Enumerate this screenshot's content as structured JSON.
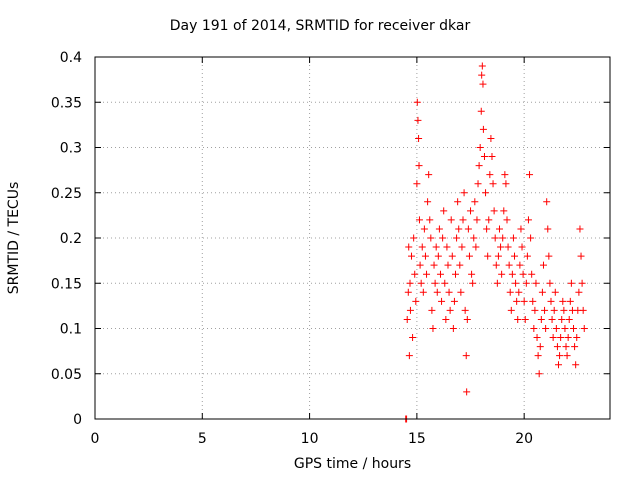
{
  "chart_data": {
    "type": "scatter",
    "title": "Day 191 of 2014, SRMTID for receiver dkar",
    "xlabel": "GPS time / hours",
    "ylabel": "SRMTID / TECUs",
    "xlim": [
      0,
      24
    ],
    "ylim": [
      0,
      0.4
    ],
    "xticks": [
      0,
      5,
      10,
      15,
      20
    ],
    "yticks": [
      0,
      0.05,
      0.1,
      0.15,
      0.2,
      0.25,
      0.3,
      0.35,
      0.4
    ],
    "grid": true,
    "marker": "+",
    "color": "#ff0000",
    "series": [
      {
        "name": "SRMTID",
        "points": [
          [
            14.48,
            0.0
          ],
          [
            14.52,
            0.0
          ],
          [
            14.55,
            0.11
          ],
          [
            14.6,
            0.14
          ],
          [
            14.62,
            0.19
          ],
          [
            14.65,
            0.07
          ],
          [
            14.68,
            0.15
          ],
          [
            14.7,
            0.12
          ],
          [
            14.75,
            0.18
          ],
          [
            14.8,
            0.09
          ],
          [
            14.85,
            0.2
          ],
          [
            14.9,
            0.16
          ],
          [
            14.95,
            0.13
          ],
          [
            15.0,
            0.26
          ],
          [
            15.02,
            0.35
          ],
          [
            15.05,
            0.33
          ],
          [
            15.08,
            0.31
          ],
          [
            15.1,
            0.28
          ],
          [
            15.12,
            0.22
          ],
          [
            15.15,
            0.17
          ],
          [
            15.2,
            0.15
          ],
          [
            15.25,
            0.19
          ],
          [
            15.3,
            0.14
          ],
          [
            15.35,
            0.21
          ],
          [
            15.4,
            0.18
          ],
          [
            15.45,
            0.16
          ],
          [
            15.5,
            0.24
          ],
          [
            15.55,
            0.27
          ],
          [
            15.6,
            0.22
          ],
          [
            15.65,
            0.2
          ],
          [
            15.7,
            0.12
          ],
          [
            15.75,
            0.1
          ],
          [
            15.8,
            0.17
          ],
          [
            15.85,
            0.15
          ],
          [
            15.9,
            0.19
          ],
          [
            15.95,
            0.14
          ],
          [
            16.0,
            0.18
          ],
          [
            16.05,
            0.21
          ],
          [
            16.1,
            0.16
          ],
          [
            16.15,
            0.13
          ],
          [
            16.2,
            0.2
          ],
          [
            16.25,
            0.23
          ],
          [
            16.3,
            0.15
          ],
          [
            16.35,
            0.11
          ],
          [
            16.4,
            0.19
          ],
          [
            16.45,
            0.17
          ],
          [
            16.5,
            0.14
          ],
          [
            16.55,
            0.12
          ],
          [
            16.6,
            0.22
          ],
          [
            16.65,
            0.18
          ],
          [
            16.7,
            0.1
          ],
          [
            16.75,
            0.13
          ],
          [
            16.8,
            0.16
          ],
          [
            16.85,
            0.2
          ],
          [
            16.9,
            0.24
          ],
          [
            16.95,
            0.21
          ],
          [
            17.0,
            0.17
          ],
          [
            17.05,
            0.14
          ],
          [
            17.1,
            0.19
          ],
          [
            17.15,
            0.22
          ],
          [
            17.2,
            0.25
          ],
          [
            17.25,
            0.12
          ],
          [
            17.3,
            0.07
          ],
          [
            17.32,
            0.03
          ],
          [
            17.35,
            0.11
          ],
          [
            17.4,
            0.21
          ],
          [
            17.45,
            0.18
          ],
          [
            17.5,
            0.23
          ],
          [
            17.55,
            0.16
          ],
          [
            17.6,
            0.15
          ],
          [
            17.65,
            0.2
          ],
          [
            17.7,
            0.24
          ],
          [
            17.75,
            0.19
          ],
          [
            17.8,
            0.22
          ],
          [
            17.85,
            0.26
          ],
          [
            17.9,
            0.28
          ],
          [
            17.95,
            0.3
          ],
          [
            18.0,
            0.34
          ],
          [
            18.02,
            0.38
          ],
          [
            18.05,
            0.39
          ],
          [
            18.08,
            0.37
          ],
          [
            18.1,
            0.32
          ],
          [
            18.15,
            0.29
          ],
          [
            18.2,
            0.25
          ],
          [
            18.25,
            0.21
          ],
          [
            18.3,
            0.18
          ],
          [
            18.35,
            0.22
          ],
          [
            18.4,
            0.27
          ],
          [
            18.45,
            0.31
          ],
          [
            18.5,
            0.29
          ],
          [
            18.55,
            0.26
          ],
          [
            18.6,
            0.23
          ],
          [
            18.65,
            0.2
          ],
          [
            18.7,
            0.17
          ],
          [
            18.75,
            0.15
          ],
          [
            18.8,
            0.18
          ],
          [
            18.85,
            0.21
          ],
          [
            18.9,
            0.19
          ],
          [
            18.95,
            0.16
          ],
          [
            19.0,
            0.2
          ],
          [
            19.05,
            0.23
          ],
          [
            19.1,
            0.27
          ],
          [
            19.15,
            0.26
          ],
          [
            19.2,
            0.22
          ],
          [
            19.25,
            0.19
          ],
          [
            19.3,
            0.17
          ],
          [
            19.35,
            0.14
          ],
          [
            19.4,
            0.12
          ],
          [
            19.45,
            0.16
          ],
          [
            19.5,
            0.2
          ],
          [
            19.55,
            0.18
          ],
          [
            19.6,
            0.15
          ],
          [
            19.65,
            0.13
          ],
          [
            19.7,
            0.11
          ],
          [
            19.75,
            0.14
          ],
          [
            19.8,
            0.17
          ],
          [
            19.85,
            0.21
          ],
          [
            19.9,
            0.19
          ],
          [
            19.95,
            0.16
          ],
          [
            20.0,
            0.13
          ],
          [
            20.05,
            0.11
          ],
          [
            20.1,
            0.15
          ],
          [
            20.15,
            0.18
          ],
          [
            20.2,
            0.22
          ],
          [
            20.25,
            0.27
          ],
          [
            20.3,
            0.2
          ],
          [
            20.35,
            0.16
          ],
          [
            20.4,
            0.13
          ],
          [
            20.45,
            0.1
          ],
          [
            20.5,
            0.12
          ],
          [
            20.55,
            0.15
          ],
          [
            20.6,
            0.09
          ],
          [
            20.65,
            0.07
          ],
          [
            20.7,
            0.05
          ],
          [
            20.75,
            0.08
          ],
          [
            20.8,
            0.11
          ],
          [
            20.85,
            0.14
          ],
          [
            20.9,
            0.17
          ],
          [
            20.95,
            0.12
          ],
          [
            21.0,
            0.1
          ],
          [
            21.05,
            0.24
          ],
          [
            21.1,
            0.21
          ],
          [
            21.15,
            0.18
          ],
          [
            21.2,
            0.15
          ],
          [
            21.25,
            0.13
          ],
          [
            21.3,
            0.11
          ],
          [
            21.35,
            0.09
          ],
          [
            21.4,
            0.12
          ],
          [
            21.45,
            0.14
          ],
          [
            21.5,
            0.1
          ],
          [
            21.55,
            0.08
          ],
          [
            21.6,
            0.06
          ],
          [
            21.65,
            0.07
          ],
          [
            21.7,
            0.09
          ],
          [
            21.75,
            0.11
          ],
          [
            21.8,
            0.13
          ],
          [
            21.85,
            0.12
          ],
          [
            21.9,
            0.1
          ],
          [
            21.95,
            0.08
          ],
          [
            22.0,
            0.07
          ],
          [
            22.05,
            0.09
          ],
          [
            22.1,
            0.11
          ],
          [
            22.15,
            0.13
          ],
          [
            22.2,
            0.15
          ],
          [
            22.25,
            0.12
          ],
          [
            22.3,
            0.1
          ],
          [
            22.35,
            0.08
          ],
          [
            22.4,
            0.06
          ],
          [
            22.45,
            0.09
          ],
          [
            22.5,
            0.12
          ],
          [
            22.55,
            0.14
          ],
          [
            22.6,
            0.21
          ],
          [
            22.65,
            0.18
          ],
          [
            22.7,
            0.15
          ],
          [
            22.75,
            0.12
          ],
          [
            22.8,
            0.1
          ]
        ]
      }
    ]
  }
}
